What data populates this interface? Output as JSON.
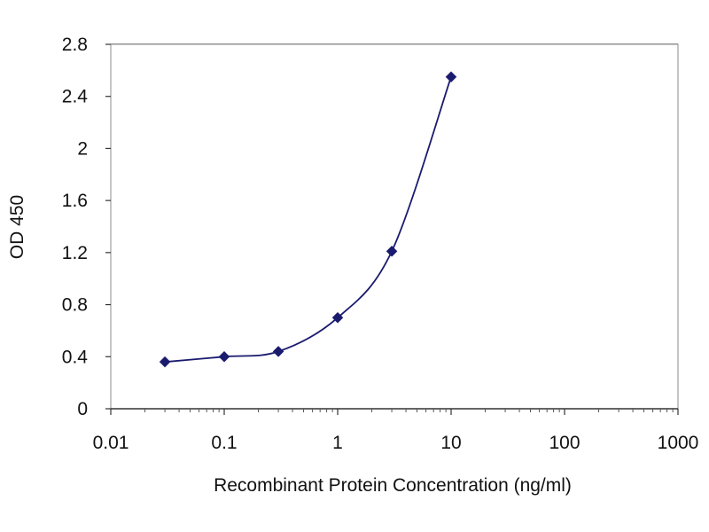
{
  "chart_data": {
    "type": "line",
    "title": "",
    "xlabel": "Recombinant Protein Concentration (ng/ml)",
    "ylabel": "OD 450",
    "x_scale": "log",
    "xlim": [
      0.01,
      1000
    ],
    "ylim": [
      0,
      2.8
    ],
    "x_ticks": [
      0.01,
      0.1,
      1,
      10,
      100,
      1000
    ],
    "x_tick_labels": [
      "0.01",
      "0.1",
      "1",
      "10",
      "100",
      "1000"
    ],
    "y_ticks": [
      0,
      0.4,
      0.8,
      1.2,
      1.6,
      2,
      2.4,
      2.8
    ],
    "y_tick_labels": [
      "0",
      "0.4",
      "0.8",
      "1.2",
      "1.6",
      "2",
      "2.4",
      "2.8"
    ],
    "grid": "horizontal",
    "legend": "none",
    "series": [
      {
        "x": [
          0.03,
          0.1,
          0.3,
          1,
          3,
          10
        ],
        "y": [
          0.36,
          0.4,
          0.44,
          0.7,
          1.21,
          2.55
        ],
        "color": "#1a1a6e",
        "marker": "diamond"
      }
    ]
  }
}
